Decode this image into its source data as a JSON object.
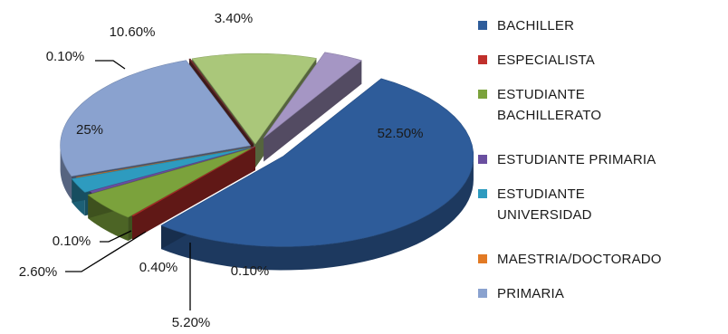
{
  "chart_data": {
    "type": "pie",
    "three_d": true,
    "exploded": true,
    "title": "",
    "legend_position": "right",
    "slices": [
      {
        "label": [
          "BACHILLER"
        ],
        "value": 52.5,
        "display": "52.50%",
        "color": "#2e5c9a"
      },
      {
        "label": [
          "ESPECIALISTA"
        ],
        "value": 0.1,
        "display": "0.10%",
        "color": "#c0302c"
      },
      {
        "label": [
          "ESTUDIANTE",
          "BACHILLERATO"
        ],
        "value": 5.2,
        "display": "5.20%",
        "color": "#7ba23c"
      },
      {
        "label": [
          "ESTUDIANTE PRIMARIA"
        ],
        "value": 0.4,
        "display": "0.40%",
        "color": "#6a4fa0"
      },
      {
        "label": [
          "ESTUDIANTE",
          "UNIVERSIDAD"
        ],
        "value": 2.6,
        "display": "2.60%",
        "color": "#2e9bbf"
      },
      {
        "label": [
          "MAESTRIA/DOCTORADO"
        ],
        "value": 0.1,
        "display": "0.10%",
        "color": "#e27a24"
      },
      {
        "label": [
          "PRIMARIA"
        ],
        "value": 25,
        "display": "25%",
        "color": "#8aa2cf"
      },
      {
        "label": [
          ""
        ],
        "value": 0.1,
        "display": "0.10%",
        "color": "#7a3333"
      },
      {
        "label": [
          ""
        ],
        "value": 10.6,
        "display": "10.60%",
        "color": "#aac77a"
      },
      {
        "label": [
          ""
        ],
        "value": 3.4,
        "display": "3.40%",
        "color": "#a596c4"
      }
    ]
  }
}
